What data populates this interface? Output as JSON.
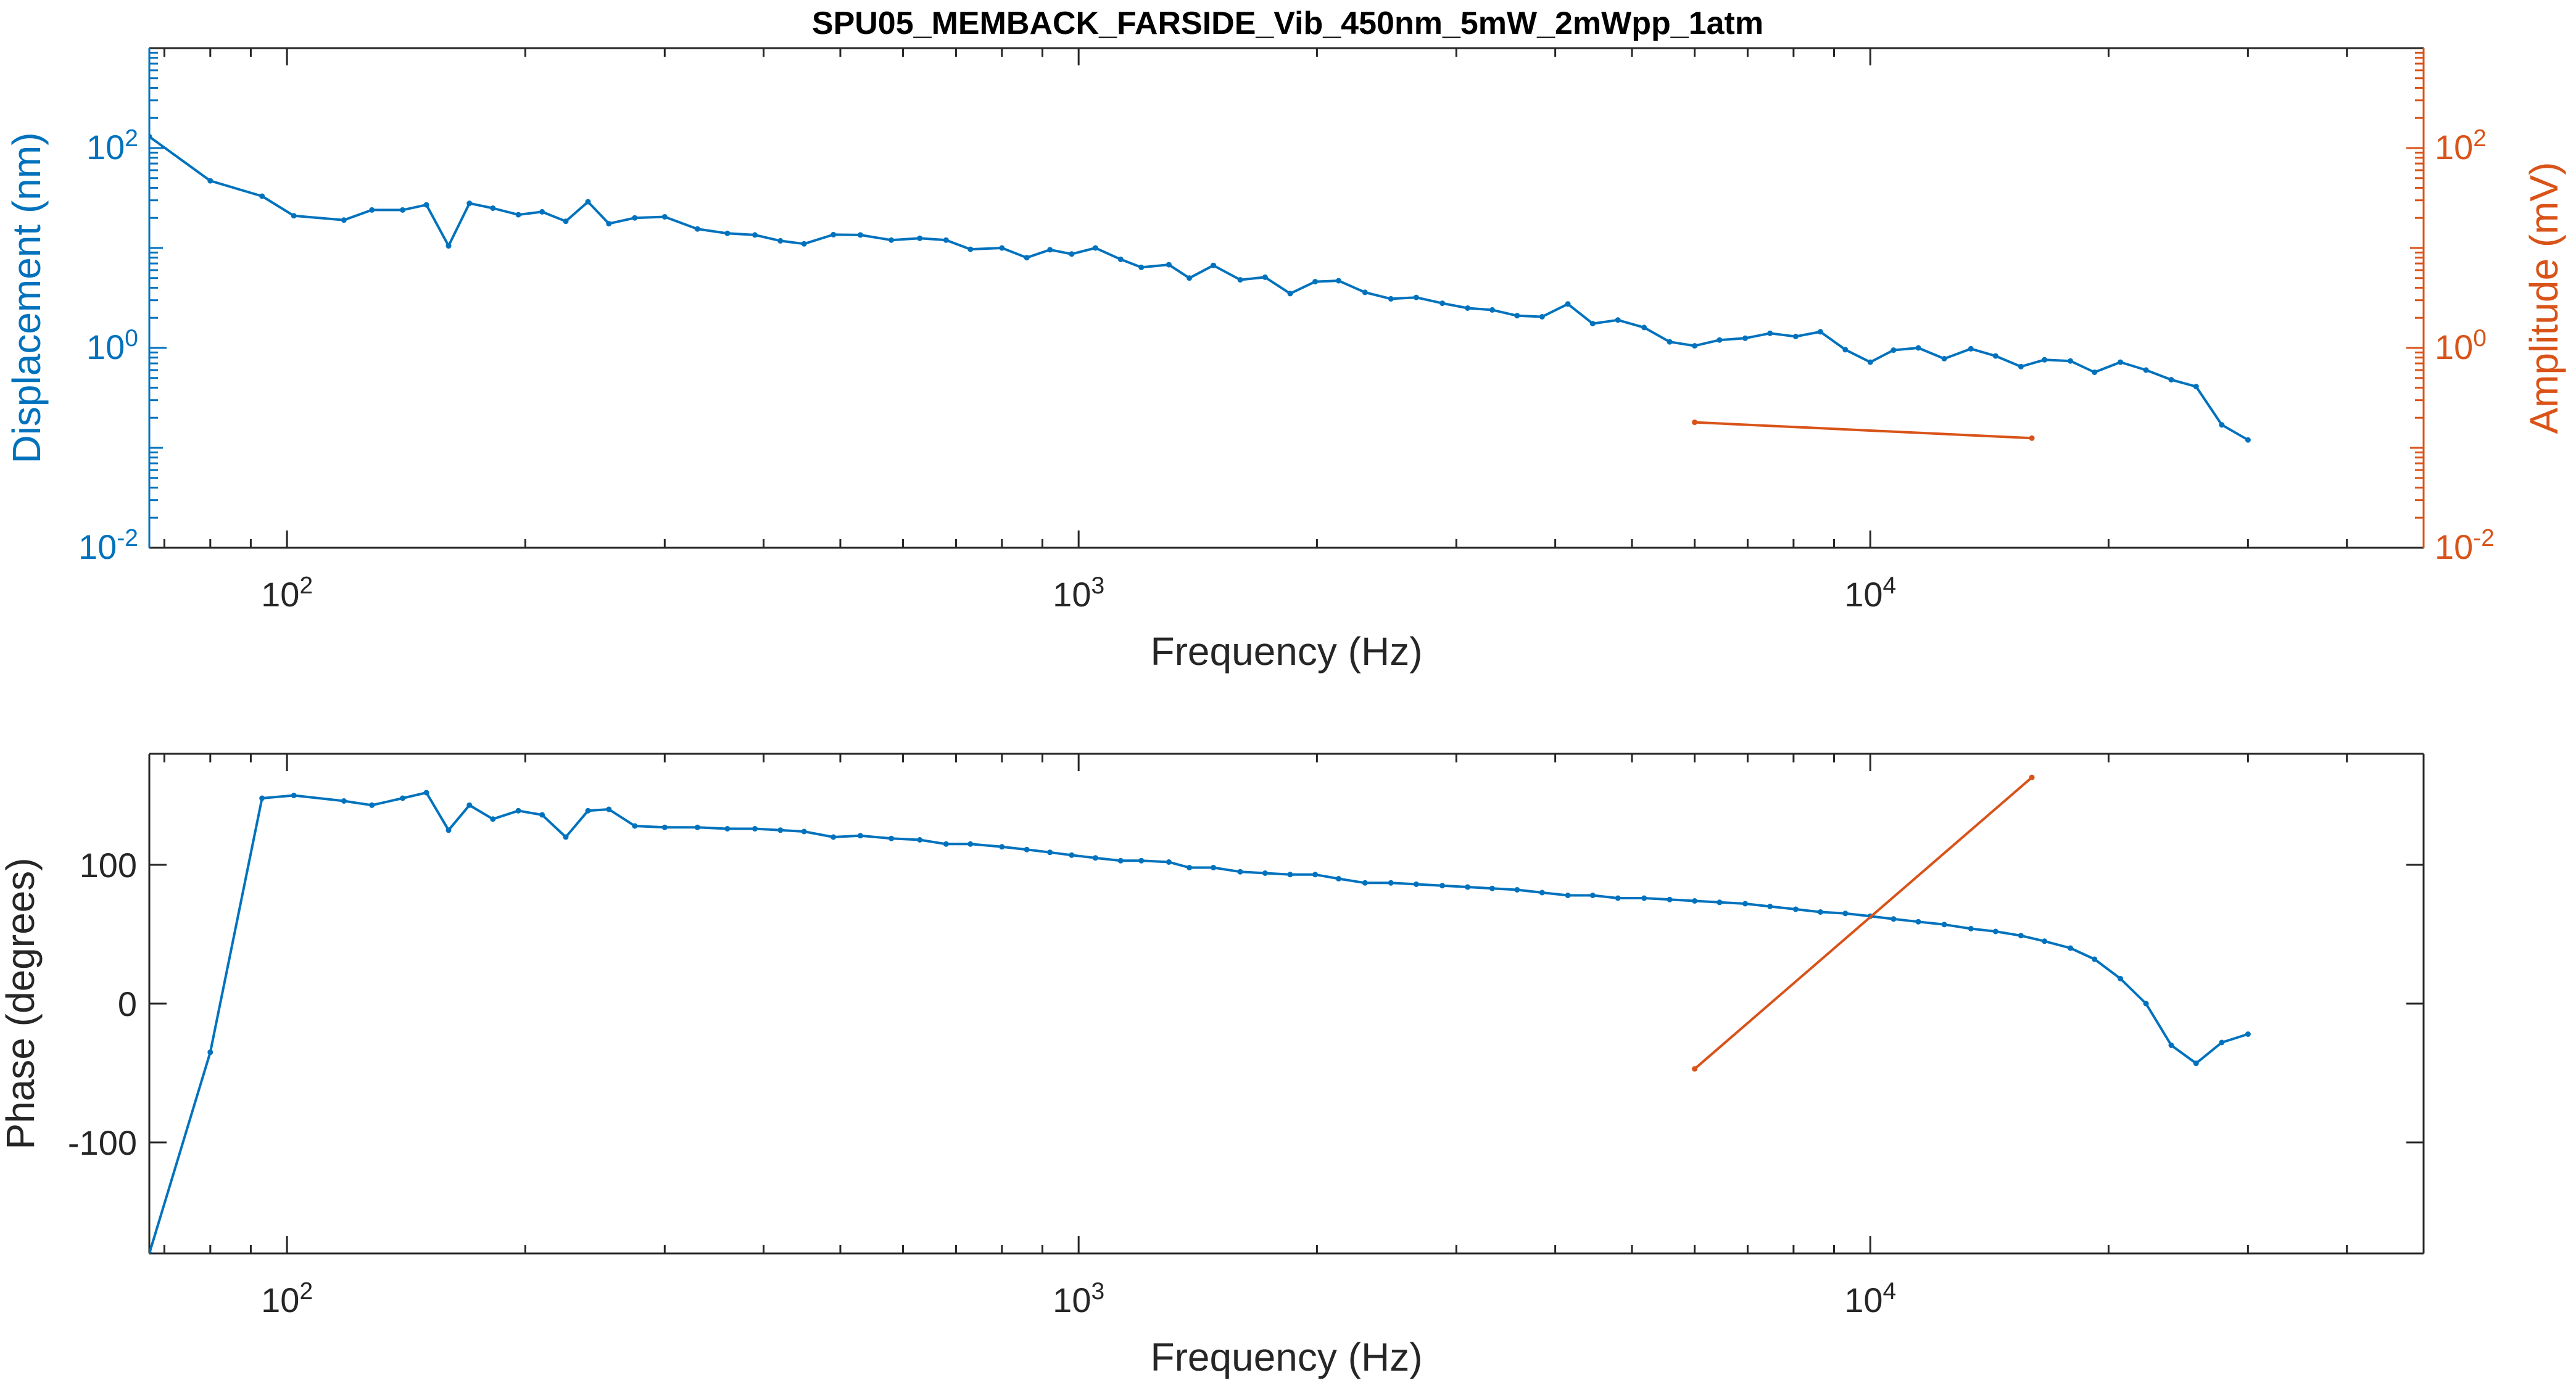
{
  "figure": {
    "title": "SPU05_MEMBACK_FARSIDE_Vib_450nm_5mW_2mWpp_1atm"
  },
  "colors": {
    "blue": "#0072BD",
    "orange": "#D95319",
    "axis": "#262626",
    "grid": "#d9d9d9"
  },
  "chart_data": [
    {
      "type": "line",
      "xlabel": "Frequency (Hz)",
      "ylabel": "Displacement (nm)",
      "y2label": "Amplitude (mV)",
      "xscale": "log",
      "yscale": "log",
      "xlim": [
        67,
        50000
      ],
      "ylim": [
        0.01,
        1000
      ],
      "y2lim": [
        0.01,
        1000
      ],
      "x_ticks": [
        {
          "value": 100,
          "base": "10",
          "exp": "2"
        },
        {
          "value": 1000,
          "base": "10",
          "exp": "3"
        },
        {
          "value": 10000,
          "base": "10",
          "exp": "4"
        }
      ],
      "y_ticks": [
        {
          "value": 0.01,
          "base": "10",
          "exp": "-2"
        },
        {
          "value": 1,
          "base": "10",
          "exp": "0"
        },
        {
          "value": 100,
          "base": "10",
          "exp": "2"
        }
      ],
      "y2_ticks": [
        {
          "value": 0.01,
          "base": "10",
          "exp": "-2"
        },
        {
          "value": 1,
          "base": "10",
          "exp": "0"
        },
        {
          "value": 100,
          "base": "10",
          "exp": "2"
        }
      ],
      "series": [
        {
          "axis": "left",
          "x": [
            67,
            80,
            93,
            102,
            118,
            128,
            140,
            150,
            160,
            170,
            182,
            196,
            210,
            225,
            240,
            255,
            275,
            300,
            330,
            360,
            390,
            420,
            450,
            490,
            530,
            580,
            630,
            680,
            730,
            800,
            860,
            920,
            980,
            1050,
            1130,
            1200,
            1300,
            1380,
            1480,
            1600,
            1720,
            1850,
            1990,
            2130,
            2300,
            2480,
            2670,
            2880,
            3100,
            3330,
            3580,
            3850,
            4150,
            4460,
            4800,
            5180,
            5580,
            6000,
            6450,
            6950,
            7470,
            8050,
            8650,
            9300,
            10000,
            10700,
            11500,
            12400,
            13400,
            14400,
            15500,
            16600,
            17900,
            19200,
            20700,
            22300,
            24000,
            25800,
            27800,
            30000
          ],
          "y": [
            130,
            47,
            33,
            21,
            19,
            24,
            24,
            27,
            10.5,
            28,
            25,
            21.5,
            23,
            18.5,
            29,
            17.5,
            20,
            20.5,
            15.5,
            14,
            13.5,
            11.8,
            11,
            13.6,
            13.5,
            12,
            12.5,
            12,
            9.7,
            10,
            8,
            9.6,
            8.7,
            10,
            7.7,
            6.4,
            6.8,
            5,
            6.7,
            4.8,
            5.1,
            3.5,
            4.6,
            4.7,
            3.6,
            3.1,
            3.2,
            2.8,
            2.5,
            2.4,
            2.1,
            2.05,
            2.75,
            1.75,
            1.9,
            1.6,
            1.15,
            1.05,
            1.2,
            1.25,
            1.4,
            1.3,
            1.45,
            0.96,
            0.72,
            0.95,
            1.0,
            0.78,
            0.98,
            0.83,
            0.65,
            0.76,
            0.74,
            0.57,
            0.72,
            0.6,
            0.48,
            0.41,
            0.17,
            0.12
          ]
        },
        {
          "axis": "right",
          "x": [
            6000,
            16000
          ],
          "y": [
            0.18,
            0.125
          ]
        }
      ]
    },
    {
      "type": "line",
      "xlabel": "Frequency (Hz)",
      "ylabel": "Phase (degrees)",
      "xscale": "log",
      "xlim": [
        67,
        50000
      ],
      "ylim": [
        -180,
        180
      ],
      "x_ticks": [
        {
          "value": 100,
          "base": "10",
          "exp": "2"
        },
        {
          "value": 1000,
          "base": "10",
          "exp": "3"
        },
        {
          "value": 10000,
          "base": "10",
          "exp": "4"
        }
      ],
      "y_ticks": [
        {
          "value": -100,
          "label": "-100"
        },
        {
          "value": 0,
          "label": "0"
        },
        {
          "value": 100,
          "label": "100"
        }
      ],
      "series": [
        {
          "x": [
            67,
            80,
            93,
            102,
            118,
            128,
            140,
            150,
            160,
            170,
            182,
            196,
            210,
            225,
            240,
            255,
            275,
            300,
            330,
            360,
            390,
            420,
            450,
            490,
            530,
            580,
            630,
            680,
            730,
            800,
            860,
            920,
            980,
            1050,
            1130,
            1200,
            1300,
            1380,
            1480,
            1600,
            1720,
            1850,
            1990,
            2130,
            2300,
            2480,
            2670,
            2880,
            3100,
            3330,
            3580,
            3850,
            4150,
            4460,
            4800,
            5180,
            5580,
            6000,
            6450,
            6950,
            7470,
            8050,
            8650,
            9300,
            10000,
            10700,
            11500,
            12400,
            13400,
            14400,
            15500,
            16600,
            17900,
            19200,
            20700,
            22300,
            24000,
            25800,
            27800,
            30000
          ],
          "y": [
            -180,
            -35,
            148,
            150,
            146,
            143,
            148,
            152,
            125,
            143,
            133,
            139,
            136,
            120,
            139,
            140,
            128,
            127,
            127,
            126,
            126,
            125,
            124,
            120,
            121,
            119,
            118,
            115,
            115,
            113,
            111,
            109,
            107,
            105,
            103,
            103,
            102,
            98,
            98,
            95,
            94,
            93,
            93,
            90,
            87,
            87,
            86,
            85,
            84,
            83,
            82,
            80,
            78,
            78,
            76,
            76,
            75,
            74,
            73,
            72,
            70,
            68,
            66,
            65,
            63,
            61,
            59,
            57,
            54,
            52,
            49,
            45,
            40,
            32,
            18,
            0,
            -30,
            -43,
            -28,
            -22
          ]
        },
        {
          "x": [
            6000,
            16000
          ],
          "y": [
            -47,
            163
          ]
        }
      ]
    }
  ]
}
